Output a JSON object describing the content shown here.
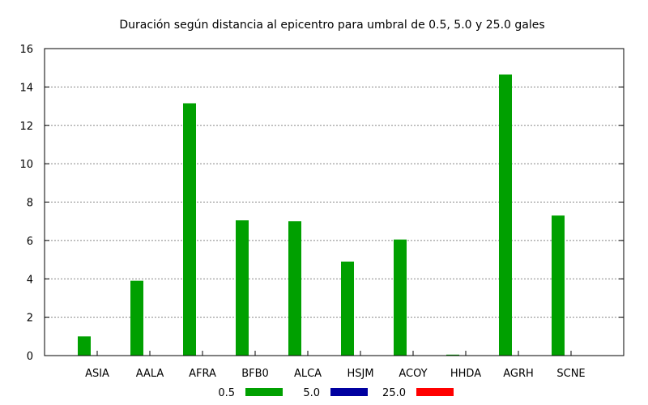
{
  "chart_data": {
    "type": "bar",
    "title": "Duración según distancia al epicentro para umbral de 0.5, 5.0 y 25.0 gales",
    "xlabel": "",
    "ylabel": "",
    "categories": [
      "ASIA",
      "AALA",
      "AFRA",
      "BFB0",
      "ALCA",
      "HSJM",
      "ACOY",
      "HHDA",
      "AGRH",
      "SCNE"
    ],
    "series": [
      {
        "name": "0.5",
        "color": "#00a000",
        "values": [
          1.0,
          3.9,
          13.15,
          7.05,
          7.0,
          4.9,
          6.05,
          0.05,
          14.65,
          7.3
        ]
      },
      {
        "name": "5.0",
        "color": "#0000a0",
        "values": [
          0,
          0,
          0,
          0,
          0,
          0,
          0,
          0,
          0,
          0
        ]
      },
      {
        "name": "25.0",
        "color": "#ff0000",
        "values": [
          0,
          0,
          0,
          0,
          0,
          0,
          0,
          0,
          0,
          0
        ]
      }
    ],
    "ylim": [
      0,
      16
    ],
    "yticks": [
      "0",
      "2",
      "4",
      "6",
      "8",
      "10",
      "12",
      "14",
      "16"
    ],
    "grid": true,
    "legend_position": "bottom"
  }
}
